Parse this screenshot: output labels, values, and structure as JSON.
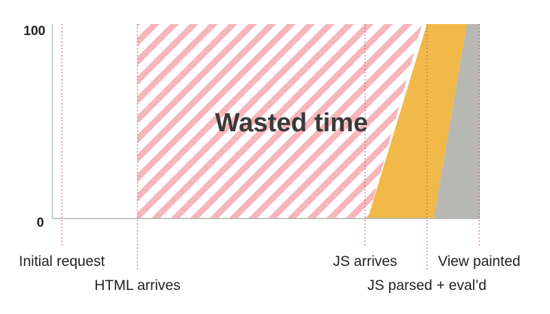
{
  "chart_data": {
    "type": "area",
    "title": "",
    "xlabel": "",
    "ylabel": "",
    "ylim": [
      0,
      100
    ],
    "y_ticks": [
      {
        "value": 100,
        "label": "100"
      },
      {
        "value": 0,
        "label": "0"
      }
    ],
    "grid": false,
    "events": [
      {
        "key": "initial_request",
        "label": "Initial request",
        "row": 1
      },
      {
        "key": "html_arrives",
        "label": "HTML arrives",
        "row": 2
      },
      {
        "key": "js_arrives",
        "label": "JS arrives",
        "row": 1
      },
      {
        "key": "js_parsed",
        "label": "JS parsed + eval’d",
        "row": 2
      },
      {
        "key": "view_painted",
        "label": "View painted",
        "row": 1
      }
    ],
    "regions": [
      {
        "name": "wasted-time-region",
        "from": "html_arrives",
        "to": "js_parsed",
        "pattern": "diagonal-stripes",
        "color": "#f6b6bc"
      },
      {
        "name": "js-parse-region",
        "from": "js_arrives",
        "to": "view_painted",
        "color": "#f0b94a"
      },
      {
        "name": "paint-region",
        "from": "js_parsed",
        "to": "view_painted",
        "color": "#b7b8b3"
      }
    ],
    "annotation": "Wasted time",
    "colors": {
      "axis": "#bdbdbd",
      "event_line": "#c94a5a",
      "baseline": "#b0b0b0"
    }
  }
}
